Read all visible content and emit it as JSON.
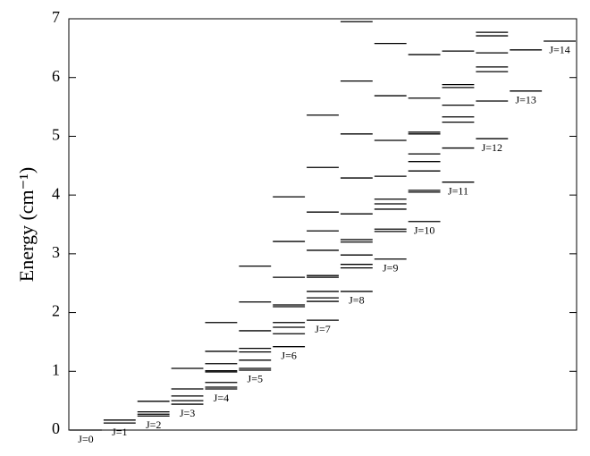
{
  "chart_data": {
    "type": "levels",
    "ylabel": "Energy (cm⁻¹)",
    "ylim": [
      0,
      7
    ],
    "yticks": [
      0,
      1,
      2,
      3,
      4,
      5,
      6,
      7
    ],
    "color": "#000000",
    "series": [
      {
        "name": "J=0",
        "values": [
          0
        ]
      },
      {
        "name": "J=1",
        "values": [
          0.12,
          0.17
        ]
      },
      {
        "name": "J=2",
        "values": [
          0.24,
          0.27,
          0.31,
          0.49
        ]
      },
      {
        "name": "J=3",
        "values": [
          0.44,
          0.5,
          0.58,
          0.7,
          1.05
        ]
      },
      {
        "name": "J=4",
        "values": [
          0.7,
          0.73,
          0.81,
          0.99,
          1.01,
          1.13,
          1.34,
          1.83
        ]
      },
      {
        "name": "J=5",
        "values": [
          1.02,
          1.05,
          1.19,
          1.33,
          1.39,
          1.69,
          2.18,
          2.79
        ]
      },
      {
        "name": "J=6",
        "values": [
          1.42,
          1.64,
          1.75,
          1.83,
          2.1,
          2.13,
          2.6,
          3.21,
          3.97
        ]
      },
      {
        "name": "J=7",
        "values": [
          1.87,
          2.19,
          2.25,
          2.36,
          2.6,
          2.63,
          3.06,
          3.39,
          3.71,
          4.47,
          5.36
        ]
      },
      {
        "name": "J=8",
        "values": [
          2.36,
          2.76,
          2.82,
          2.98,
          3.2,
          3.24,
          3.68,
          4.29,
          5.04,
          5.94,
          6.95
        ]
      },
      {
        "name": "J=9",
        "values": [
          2.91,
          3.38,
          3.42,
          3.76,
          3.85,
          3.93,
          4.32,
          4.93,
          5.69,
          6.58
        ]
      },
      {
        "name": "J=10",
        "values": [
          3.55,
          4.05,
          4.08,
          4.41,
          4.57,
          4.7,
          5.04,
          5.07,
          5.65,
          6.39
        ]
      },
      {
        "name": "J=11",
        "values": [
          4.22,
          4.8,
          5.24,
          5.33,
          5.53,
          5.83,
          5.88,
          6.45
        ]
      },
      {
        "name": "J=12",
        "values": [
          4.96,
          5.6,
          6.1,
          6.18,
          6.42,
          6.71,
          6.77
        ]
      },
      {
        "name": "J=13",
        "values": [
          5.77,
          6.47
        ]
      },
      {
        "name": "J=14",
        "values": [
          6.62
        ]
      }
    ]
  }
}
